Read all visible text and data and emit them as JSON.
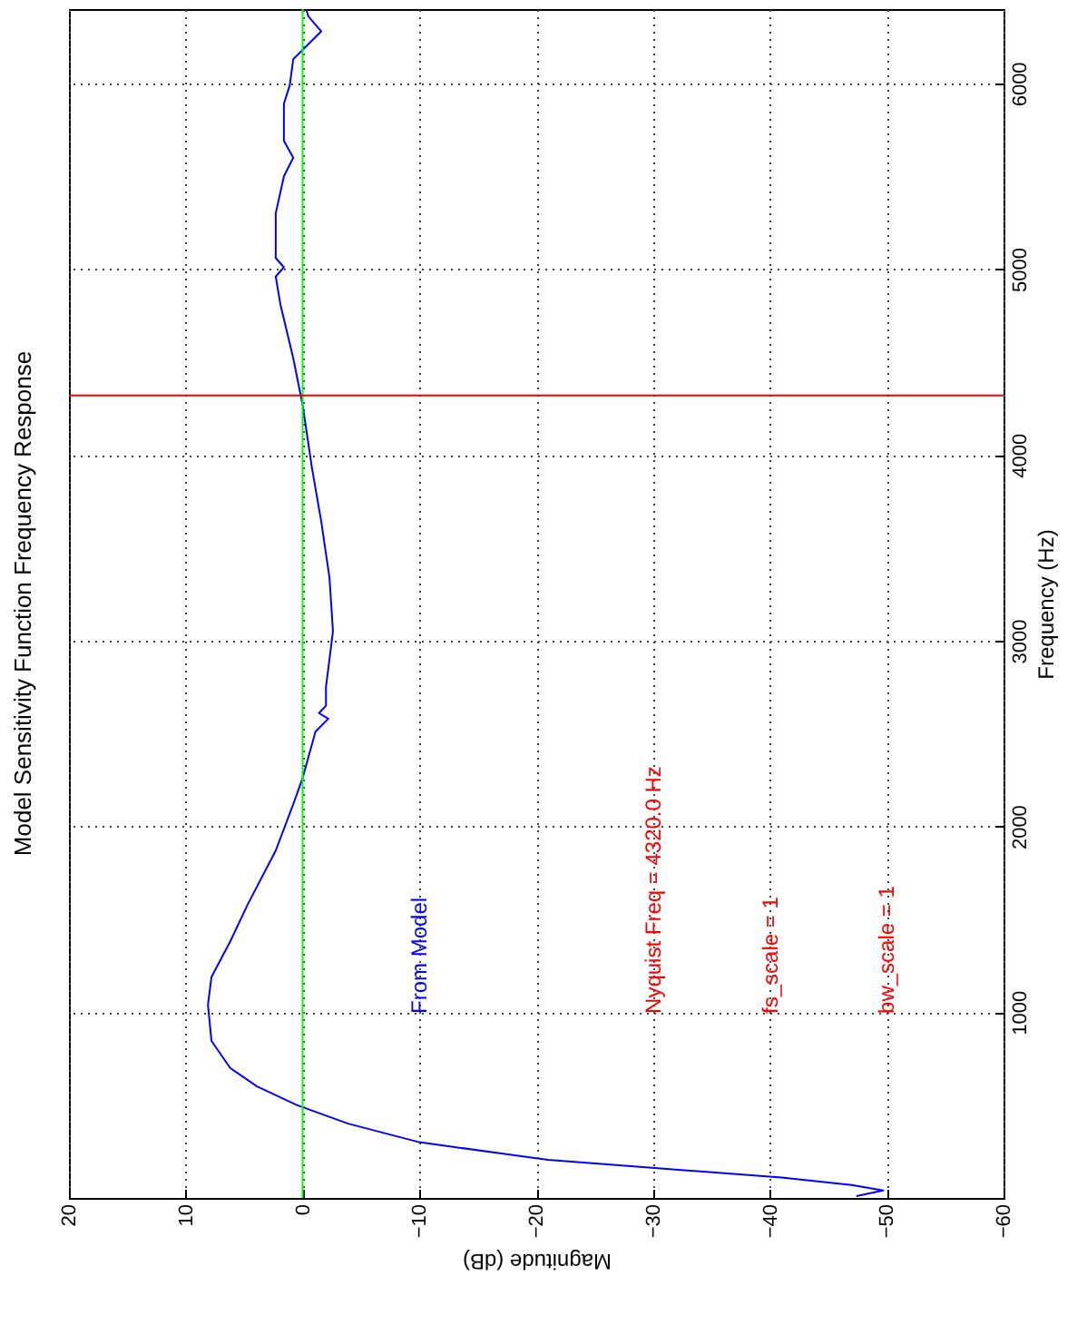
{
  "chart_data": {
    "type": "line",
    "title": "Model Sensitivity Function Frequency Response",
    "xlabel": "Magnitude (dB)",
    "ylabel": "Frequency (Hz)",
    "xlim": [
      20,
      -60
    ],
    "ylim": [
      0,
      6400
    ],
    "xticks": [
      20,
      10,
      0,
      -10,
      -20,
      -30,
      -40,
      -50,
      -60
    ],
    "yticks": [
      1000,
      2000,
      3000,
      4000,
      5000,
      6000
    ],
    "grid": true,
    "legend": false,
    "series": [
      {
        "name": "From Model",
        "color": "#0000ff",
        "x": [
          -47.4,
          -49.7,
          -47,
          -41,
          -21,
          -10,
          -3.9,
          0.5,
          3.9,
          6.2,
          7.8,
          8.1,
          7.8,
          6.2,
          4.7,
          2.3,
          0.8,
          0,
          -1.1,
          -2.2,
          -1.4,
          -2,
          -2,
          -2.6,
          -2.3,
          -1.6,
          -0.8,
          0,
          0.8,
          1.9,
          2.3,
          1.6,
          2.3,
          2.3,
          1.6,
          0.8,
          1.6,
          1.6,
          1.1,
          0.8,
          -1.6,
          -0.5,
          -0.3
        ],
        "values": [
          10,
          40,
          70,
          110,
          205,
          300,
          400,
          500,
          600,
          700,
          845,
          1040,
          1190,
          1380,
          1580,
          1870,
          2120,
          2260,
          2510,
          2580,
          2610,
          2650,
          2750,
          3050,
          3340,
          3640,
          3930,
          4270,
          4520,
          4810,
          4960,
          5010,
          5060,
          5300,
          5500,
          5600,
          5690,
          5890,
          5990,
          6130,
          6280,
          6360,
          6400
        ]
      }
    ],
    "ref_lines": [
      {
        "axis": "x",
        "value": 0,
        "color": "#00ff00"
      },
      {
        "axis": "y",
        "value": 4320,
        "color": "#ff0000"
      }
    ],
    "annotations": [
      "Nyquist Freq = 4320.0 Hz",
      "fs_scale =  1",
      "bw_scale =  1"
    ]
  }
}
